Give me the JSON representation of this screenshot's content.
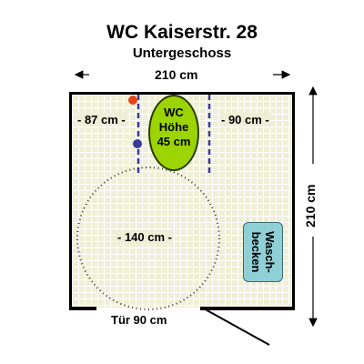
{
  "title": "WC Kaiserstr. 28",
  "subtitle": "Untergeschoss",
  "dimensions": {
    "width_label": "210 cm",
    "depth_label": "210 cm",
    "left_clearance": "- 87 cm -",
    "right_clearance": "- 90 cm -",
    "turning_circle": "- 140 cm -",
    "door": "Tür 90 cm"
  },
  "toilet": {
    "line1": "WC",
    "line2": "Höhe",
    "line3": "45 cm"
  },
  "sink": {
    "line1": "Wasch-",
    "line2": "becken"
  },
  "colors": {
    "floor": "#efefd8",
    "toilet": "#9bd400",
    "sink": "#8fd0d6",
    "flush_button": "#e8431c",
    "grab_bar": "#3a3a9a"
  }
}
